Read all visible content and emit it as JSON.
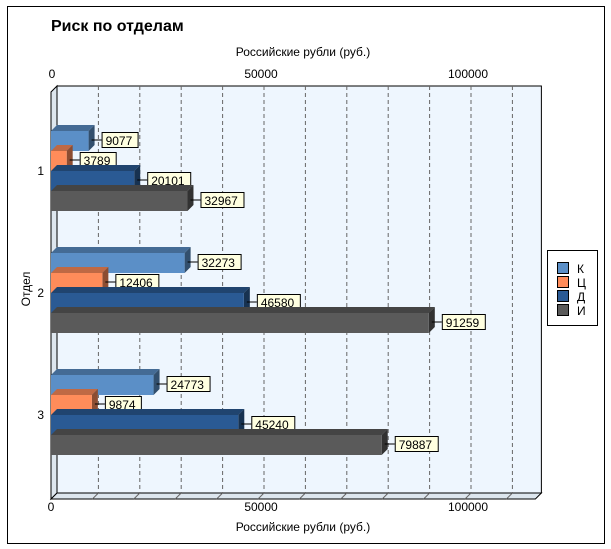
{
  "chart_data": {
    "type": "bar",
    "orientation": "horizontal",
    "title": "Риск по отделам",
    "xlabel": "Российские рубли (руб.)",
    "ylabel": "Отдел",
    "categories": [
      "1",
      "2",
      "3"
    ],
    "series": [
      {
        "name": "К",
        "color": "#5B8FC7",
        "values": [
          9077,
          32273,
          24773
        ]
      },
      {
        "name": "Ц",
        "color": "#FF8C5A",
        "values": [
          3789,
          12406,
          9874
        ]
      },
      {
        "name": "Д",
        "color": "#2A5A94",
        "values": [
          20101,
          46580,
          45240
        ]
      },
      {
        "name": "И",
        "color": "#5A5A5A",
        "values": [
          32967,
          91259,
          79887
        ]
      }
    ],
    "xlim": [
      0,
      117000
    ],
    "xticks": [
      "0",
      "50000",
      "100000"
    ],
    "grid": true,
    "legend": "right",
    "plot_background": "#EEF6FE"
  }
}
